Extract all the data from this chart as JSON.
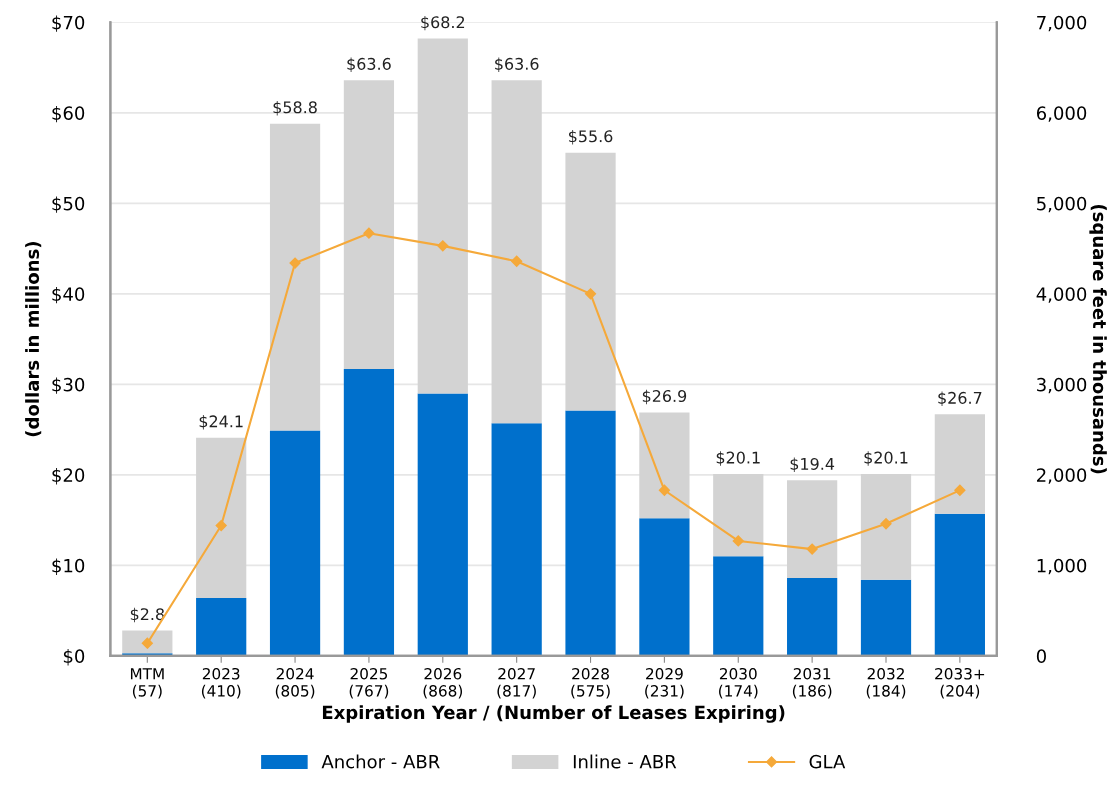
{
  "chart_data": {
    "type": "bar",
    "stacked": true,
    "categories": [
      "MTM\n(57)",
      "2023\n(410)",
      "2024\n(805)",
      "2025\n(767)",
      "2026\n(868)",
      "2027\n(817)",
      "2028\n(575)",
      "2029\n(231)",
      "2030\n(174)",
      "2031\n(186)",
      "2032\n(184)",
      "2033+\n(204)"
    ],
    "series": [
      {
        "name": "Anchor - ABR",
        "color": "#0070cc",
        "values": [
          0.3,
          6.4,
          24.9,
          31.7,
          29.0,
          25.7,
          27.1,
          15.2,
          11.0,
          8.6,
          8.4,
          15.7
        ]
      },
      {
        "name": "Inline - ABR",
        "color": "#d3d3d3",
        "values": [
          2.5,
          17.7,
          33.9,
          31.9,
          39.2,
          37.9,
          28.5,
          11.7,
          9.1,
          10.8,
          11.7,
          11.0
        ]
      },
      {
        "name": "GLA",
        "color": "#f5a93a",
        "type": "line",
        "axis": "y2",
        "marker": "diamond",
        "values": [
          140,
          1440,
          4340,
          4670,
          4530,
          4360,
          4000,
          1830,
          1270,
          1180,
          1460,
          1830
        ]
      }
    ],
    "totals": [
      "$2.8",
      "$24.1",
      "$58.8",
      "$63.6",
      "$68.2",
      "$63.6",
      "$55.6",
      "$26.9",
      "$20.1",
      "$19.4",
      "$20.1",
      "$26.7"
    ],
    "xlabel": "Expiration Year / (Number of Leases Expiring)",
    "ylabel": "(dollars in millions)",
    "y2label": "(square feet in thousands)",
    "ylim": [
      0,
      70
    ],
    "yticks": [
      {
        "value": 0,
        "label": "$0"
      },
      {
        "value": 10,
        "label": "$10"
      },
      {
        "value": 20,
        "label": "$20"
      },
      {
        "value": 30,
        "label": "$30"
      },
      {
        "value": 40,
        "label": "$40"
      },
      {
        "value": 50,
        "label": "$50"
      },
      {
        "value": 60,
        "label": "$60"
      },
      {
        "value": 70,
        "label": "$70"
      }
    ],
    "y2lim": [
      0,
      7000
    ],
    "y2ticks": [
      {
        "value": 0,
        "label": "0"
      },
      {
        "value": 1000,
        "label": "1,000"
      },
      {
        "value": 2000,
        "label": "2,000"
      },
      {
        "value": 3000,
        "label": "3,000"
      },
      {
        "value": 4000,
        "label": "4,000"
      },
      {
        "value": 5000,
        "label": "5,000"
      },
      {
        "value": 6000,
        "label": "6,000"
      },
      {
        "value": 7000,
        "label": "7,000"
      }
    ],
    "grid": "y",
    "legend": "bottom"
  }
}
